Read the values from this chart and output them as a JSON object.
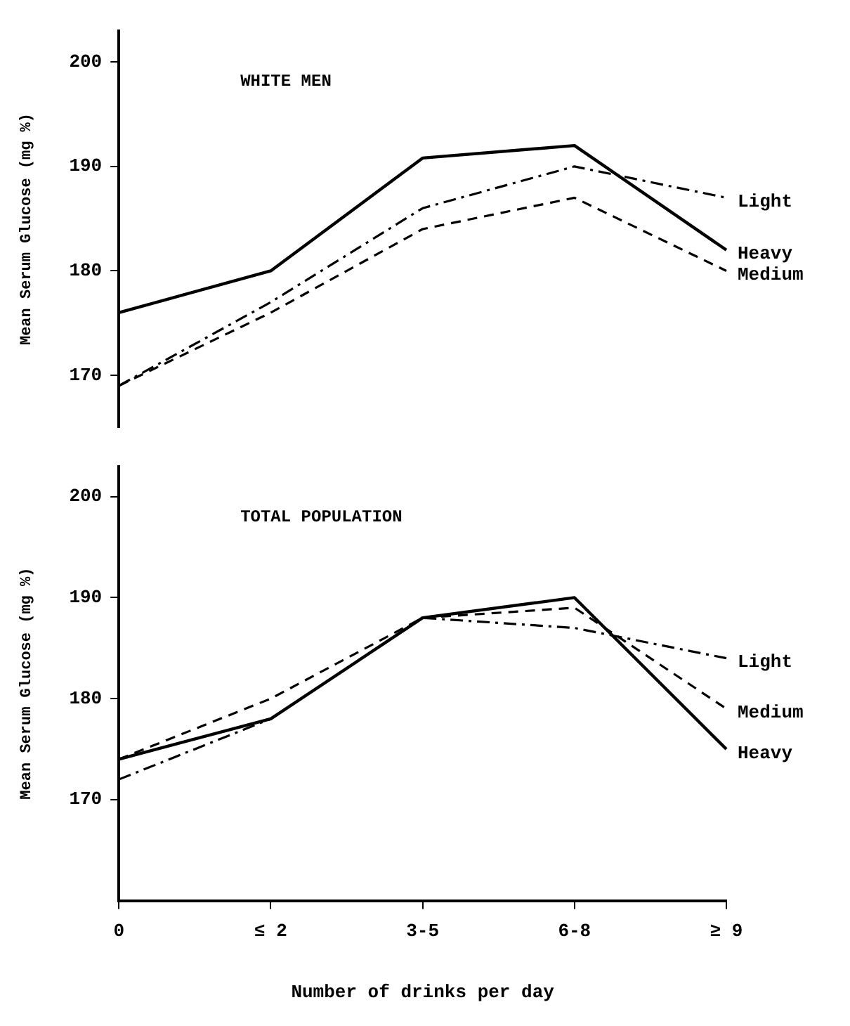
{
  "chart_data": [
    {
      "type": "line",
      "title": "WHITE MEN",
      "ylabel": "Mean Serum Glucose (mg %)",
      "categories": [
        null,
        null,
        null,
        null,
        null
      ],
      "ylim": [
        165,
        203
      ],
      "yticks": [
        170,
        180,
        190,
        200
      ],
      "tick_labels": "y",
      "marker": "none",
      "series": [
        {
          "name": "Light",
          "color": "#000000",
          "line_style": "dashdot",
          "values": [
            169,
            177,
            186,
            190,
            187
          ]
        },
        {
          "name": "Heavy",
          "color": "#000000",
          "line_style": "solid",
          "values": [
            176,
            180,
            190.8,
            192,
            182
          ]
        },
        {
          "name": "Medium",
          "color": "#000000",
          "line_style": "dashed",
          "values": [
            169,
            176,
            184,
            187,
            180
          ]
        }
      ]
    },
    {
      "type": "line",
      "title": "TOTAL POPULATION",
      "xlabel": "Number of drinks per day",
      "ylabel": "Mean Serum Glucose (mg %)",
      "categories": [
        "0",
        "≤ 2",
        "3-5",
        "6-8",
        "≥ 9"
      ],
      "ylim": [
        160,
        203
      ],
      "yticks": [
        170,
        180,
        190,
        200
      ],
      "marker": "none",
      "series": [
        {
          "name": "Light",
          "color": "#000000",
          "line_style": "dashdot",
          "values": [
            172,
            178,
            188,
            187,
            184
          ]
        },
        {
          "name": "Medium",
          "color": "#000000",
          "line_style": "dashed",
          "values": [
            174,
            180,
            188,
            189,
            179
          ]
        },
        {
          "name": "Heavy",
          "color": "#000000",
          "line_style": "solid",
          "values": [
            174,
            178,
            188,
            190,
            175
          ]
        }
      ]
    }
  ]
}
